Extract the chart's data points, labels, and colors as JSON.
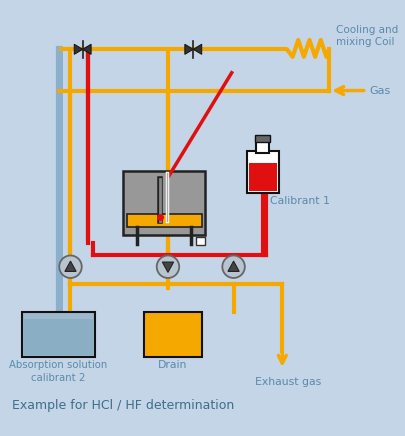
{
  "bg_color": "#c5d5e8",
  "gold": "#f5a800",
  "red": "#e01010",
  "blue_line": "#8ab0cc",
  "dark": "#111111",
  "text_color": "#5a8aaa",
  "title": "Example for HCl / HF determination",
  "label_cooling": "Cooling and\nmixing Coil",
  "label_gas": "Gas",
  "label_calibrant1": "Calibrant 1",
  "label_absorption": "Absorption solution\ncalibrant 2",
  "label_drain": "Drain",
  "label_exhaust": "Exhaust gas",
  "figw": 4.05,
  "figh": 4.36,
  "dpi": 100
}
